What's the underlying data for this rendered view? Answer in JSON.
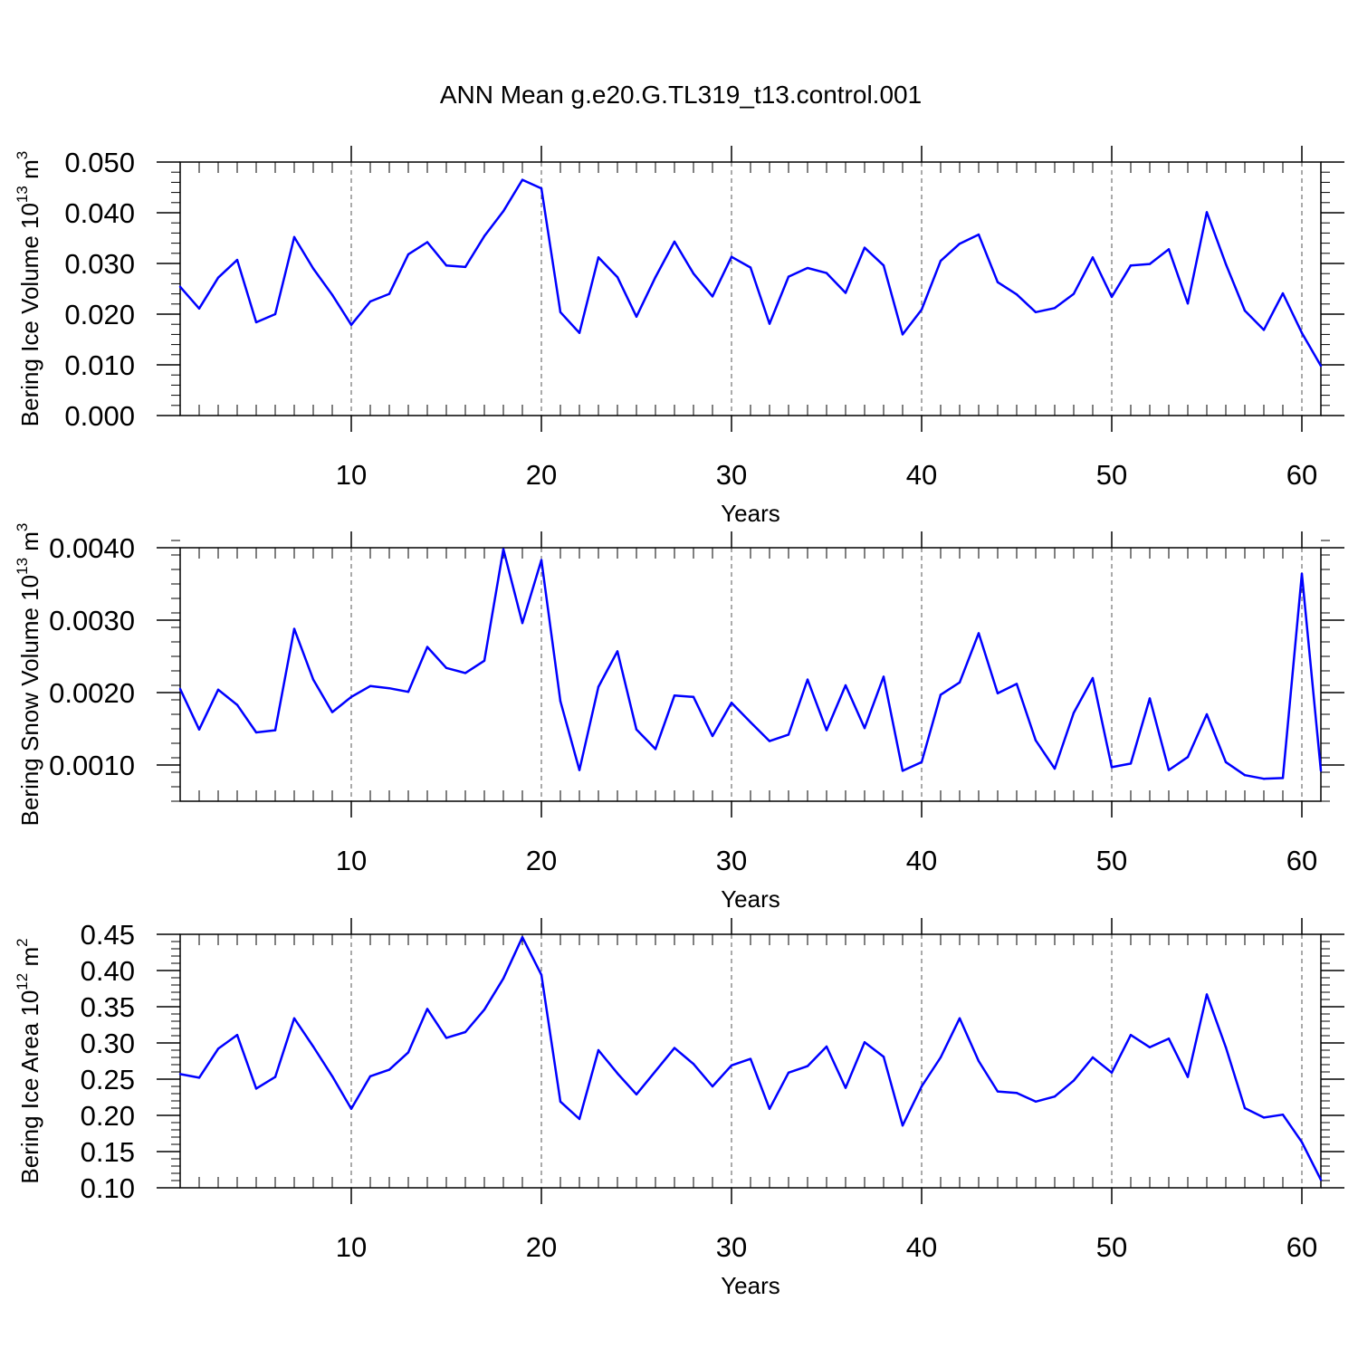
{
  "title": "ANN Mean g.e20.G.TL319_t13.control.001",
  "line_color": "#0000ff",
  "chart_data": [
    {
      "type": "line",
      "name": "ice-volume",
      "ylabel_main": "Bering Ice Volume 10",
      "ylabel_exp": "13",
      "ylabel_unit": " m",
      "ylabel_unit_exp": "3",
      "xlabel": "Years",
      "xlim": [
        1,
        61
      ],
      "ylim": [
        0.0,
        0.05
      ],
      "yticks": [
        "0.000",
        "0.010",
        "0.020",
        "0.030",
        "0.040",
        "0.050"
      ],
      "ytick_values": [
        0.0,
        0.01,
        0.02,
        0.03,
        0.04,
        0.05
      ],
      "yminor_step": 0.002,
      "xticks": [
        "10",
        "20",
        "30",
        "40",
        "50",
        "60"
      ],
      "xtick_values": [
        10,
        20,
        30,
        40,
        50,
        60
      ],
      "grid": "dashed vertical at major x ticks",
      "x": [
        1,
        2,
        3,
        4,
        5,
        6,
        7,
        8,
        9,
        10,
        11,
        12,
        13,
        14,
        15,
        16,
        17,
        18,
        19,
        20,
        21,
        22,
        23,
        24,
        25,
        26,
        27,
        28,
        29,
        30,
        31,
        32,
        33,
        34,
        35,
        36,
        37,
        38,
        39,
        40,
        41,
        42,
        43,
        44,
        45,
        46,
        47,
        48,
        49,
        50,
        51,
        52,
        53,
        54,
        55,
        56,
        57,
        58,
        59,
        60,
        61
      ],
      "values": [
        0.0254,
        0.0211,
        0.0272,
        0.0307,
        0.0184,
        0.02,
        0.0352,
        0.029,
        0.0238,
        0.0179,
        0.0225,
        0.024,
        0.0318,
        0.0342,
        0.0296,
        0.0293,
        0.0354,
        0.0403,
        0.0465,
        0.0448,
        0.0204,
        0.0163,
        0.0312,
        0.0273,
        0.0195,
        0.0273,
        0.0343,
        0.028,
        0.0235,
        0.0313,
        0.0292,
        0.0181,
        0.0274,
        0.0291,
        0.0281,
        0.0242,
        0.0331,
        0.0296,
        0.016,
        0.0209,
        0.0305,
        0.0339,
        0.0357,
        0.0263,
        0.0239,
        0.0204,
        0.0212,
        0.024,
        0.0312,
        0.0234,
        0.0296,
        0.0299,
        0.0328,
        0.0221,
        0.0401,
        0.0299,
        0.0207,
        0.0169,
        0.0241,
        0.0163,
        0.0098
      ]
    },
    {
      "type": "line",
      "name": "snow-volume",
      "ylabel_main": "Bering Snow Volume 10",
      "ylabel_exp": "13",
      "ylabel_unit": " m",
      "ylabel_unit_exp": "3",
      "xlabel": "Years",
      "xlim": [
        1,
        61
      ],
      "ylim": [
        0.0005,
        0.004
      ],
      "yticks": [
        "0.0010",
        "0.0020",
        "0.0030",
        "0.0040"
      ],
      "ytick_values": [
        0.001,
        0.002,
        0.003,
        0.004
      ],
      "yminor_step": 0.0002,
      "xticks": [
        "10",
        "20",
        "30",
        "40",
        "50",
        "60"
      ],
      "xtick_values": [
        10,
        20,
        30,
        40,
        50,
        60
      ],
      "grid": "dashed vertical at major x ticks",
      "x": [
        1,
        2,
        3,
        4,
        5,
        6,
        7,
        8,
        9,
        10,
        11,
        12,
        13,
        14,
        15,
        16,
        17,
        18,
        19,
        20,
        21,
        22,
        23,
        24,
        25,
        26,
        27,
        28,
        29,
        30,
        31,
        32,
        33,
        34,
        35,
        36,
        37,
        38,
        39,
        40,
        41,
        42,
        43,
        44,
        45,
        46,
        47,
        48,
        49,
        50,
        51,
        52,
        53,
        54,
        55,
        56,
        57,
        58,
        59,
        60,
        61
      ],
      "values": [
        0.00205,
        0.00149,
        0.00204,
        0.00183,
        0.00145,
        0.00148,
        0.00288,
        0.00218,
        0.00173,
        0.00194,
        0.00209,
        0.00206,
        0.00201,
        0.00263,
        0.00234,
        0.00227,
        0.00244,
        0.00398,
        0.00296,
        0.00383,
        0.00188,
        0.00093,
        0.00208,
        0.00257,
        0.00149,
        0.00122,
        0.00196,
        0.00194,
        0.0014,
        0.00186,
        0.00159,
        0.00133,
        0.00142,
        0.00218,
        0.00148,
        0.0021,
        0.00151,
        0.00222,
        0.00092,
        0.00104,
        0.00197,
        0.00214,
        0.00282,
        0.00199,
        0.00212,
        0.00134,
        0.00095,
        0.00172,
        0.0022,
        0.00097,
        0.00102,
        0.00192,
        0.00093,
        0.00111,
        0.0017,
        0.00104,
        0.00086,
        0.00081,
        0.00082,
        0.00364,
        0.00092
      ]
    },
    {
      "type": "line",
      "name": "ice-area",
      "ylabel_main": "Bering Ice Area 10",
      "ylabel_exp": "12",
      "ylabel_unit": " m",
      "ylabel_unit_exp": "2",
      "xlabel": "Years",
      "xlim": [
        1,
        61
      ],
      "ylim": [
        0.1,
        0.45
      ],
      "yticks": [
        "0.10",
        "0.15",
        "0.20",
        "0.25",
        "0.30",
        "0.35",
        "0.40",
        "0.45"
      ],
      "ytick_values": [
        0.1,
        0.15,
        0.2,
        0.25,
        0.3,
        0.35,
        0.4,
        0.45
      ],
      "yminor_step": 0.01,
      "xticks": [
        "10",
        "20",
        "30",
        "40",
        "50",
        "60"
      ],
      "xtick_values": [
        10,
        20,
        30,
        40,
        50,
        60
      ],
      "grid": "dashed vertical at major x ticks",
      "x": [
        1,
        2,
        3,
        4,
        5,
        6,
        7,
        8,
        9,
        10,
        11,
        12,
        13,
        14,
        15,
        16,
        17,
        18,
        19,
        20,
        21,
        22,
        23,
        24,
        25,
        26,
        27,
        28,
        29,
        30,
        31,
        32,
        33,
        34,
        35,
        36,
        37,
        38,
        39,
        40,
        41,
        42,
        43,
        44,
        45,
        46,
        47,
        48,
        49,
        50,
        51,
        52,
        53,
        54,
        55,
        56,
        57,
        58,
        59,
        60,
        61
      ],
      "values": [
        0.257,
        0.252,
        0.292,
        0.311,
        0.237,
        0.253,
        0.334,
        0.295,
        0.254,
        0.209,
        0.254,
        0.263,
        0.287,
        0.347,
        0.307,
        0.315,
        0.346,
        0.389,
        0.446,
        0.394,
        0.219,
        0.195,
        0.29,
        0.258,
        0.229,
        0.261,
        0.293,
        0.271,
        0.24,
        0.269,
        0.278,
        0.209,
        0.259,
        0.268,
        0.295,
        0.238,
        0.301,
        0.281,
        0.186,
        0.24,
        0.28,
        0.334,
        0.275,
        0.233,
        0.231,
        0.219,
        0.226,
        0.248,
        0.28,
        0.259,
        0.311,
        0.294,
        0.306,
        0.253,
        0.367,
        0.294,
        0.21,
        0.197,
        0.201,
        0.163,
        0.111
      ]
    }
  ]
}
